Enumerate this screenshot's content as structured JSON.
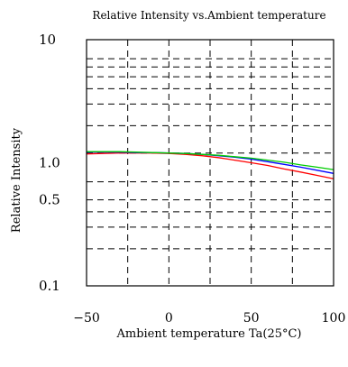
{
  "chart_data": {
    "type": "line",
    "title": "Relative Intensity vs.Ambient temperature",
    "xlabel": "Ambient temperature Ta(25°C)",
    "ylabel": "Relative Intensity",
    "xlim": [
      -50,
      100
    ],
    "ylim": [
      0.1,
      10
    ],
    "yscale": "log",
    "grid": true,
    "grid_style": "dashed",
    "x_ticks": [
      {
        "value": -50,
        "label": "−50"
      },
      {
        "value": 0,
        "label": "0"
      },
      {
        "value": 50,
        "label": "50"
      },
      {
        "value": 100,
        "label": "100"
      }
    ],
    "x_gridlines": [
      -25,
      0,
      25,
      50,
      75
    ],
    "y_ticks": [
      {
        "value": 10,
        "label": "10"
      },
      {
        "value": 1.0,
        "label": "1.0"
      },
      {
        "value": 0.5,
        "label": "0.5"
      },
      {
        "value": 0.1,
        "label": "0.1"
      }
    ],
    "y_gridlines": [
      0.2,
      0.3,
      0.4,
      0.5,
      0.7,
      1.2,
      2,
      3,
      4,
      5,
      6,
      7
    ],
    "series": [
      {
        "color": "#ff0000",
        "x": [
          -50,
          -40,
          -30,
          -20,
          -10,
          0,
          10,
          20,
          30,
          40,
          50,
          60,
          70,
          80,
          90,
          100
        ],
        "y": [
          1.18,
          1.19,
          1.2,
          1.2,
          1.2,
          1.19,
          1.17,
          1.14,
          1.1,
          1.05,
          1.0,
          0.95,
          0.89,
          0.84,
          0.79,
          0.74
        ]
      },
      {
        "color": "#0000ff",
        "x": [
          -50,
          -40,
          -30,
          -20,
          -10,
          0,
          10,
          20,
          30,
          40,
          50,
          60,
          70,
          80,
          90,
          100
        ],
        "y": [
          1.22,
          1.22,
          1.22,
          1.21,
          1.21,
          1.2,
          1.19,
          1.17,
          1.14,
          1.11,
          1.07,
          1.02,
          0.97,
          0.92,
          0.87,
          0.82
        ]
      },
      {
        "color": "#00cc00",
        "x": [
          -50,
          -40,
          -30,
          -20,
          -10,
          0,
          10,
          20,
          30,
          40,
          50,
          60,
          70,
          80,
          90,
          100
        ],
        "y": [
          1.23,
          1.23,
          1.23,
          1.22,
          1.21,
          1.2,
          1.19,
          1.17,
          1.15,
          1.12,
          1.09,
          1.05,
          1.01,
          0.96,
          0.92,
          0.88
        ]
      }
    ]
  }
}
